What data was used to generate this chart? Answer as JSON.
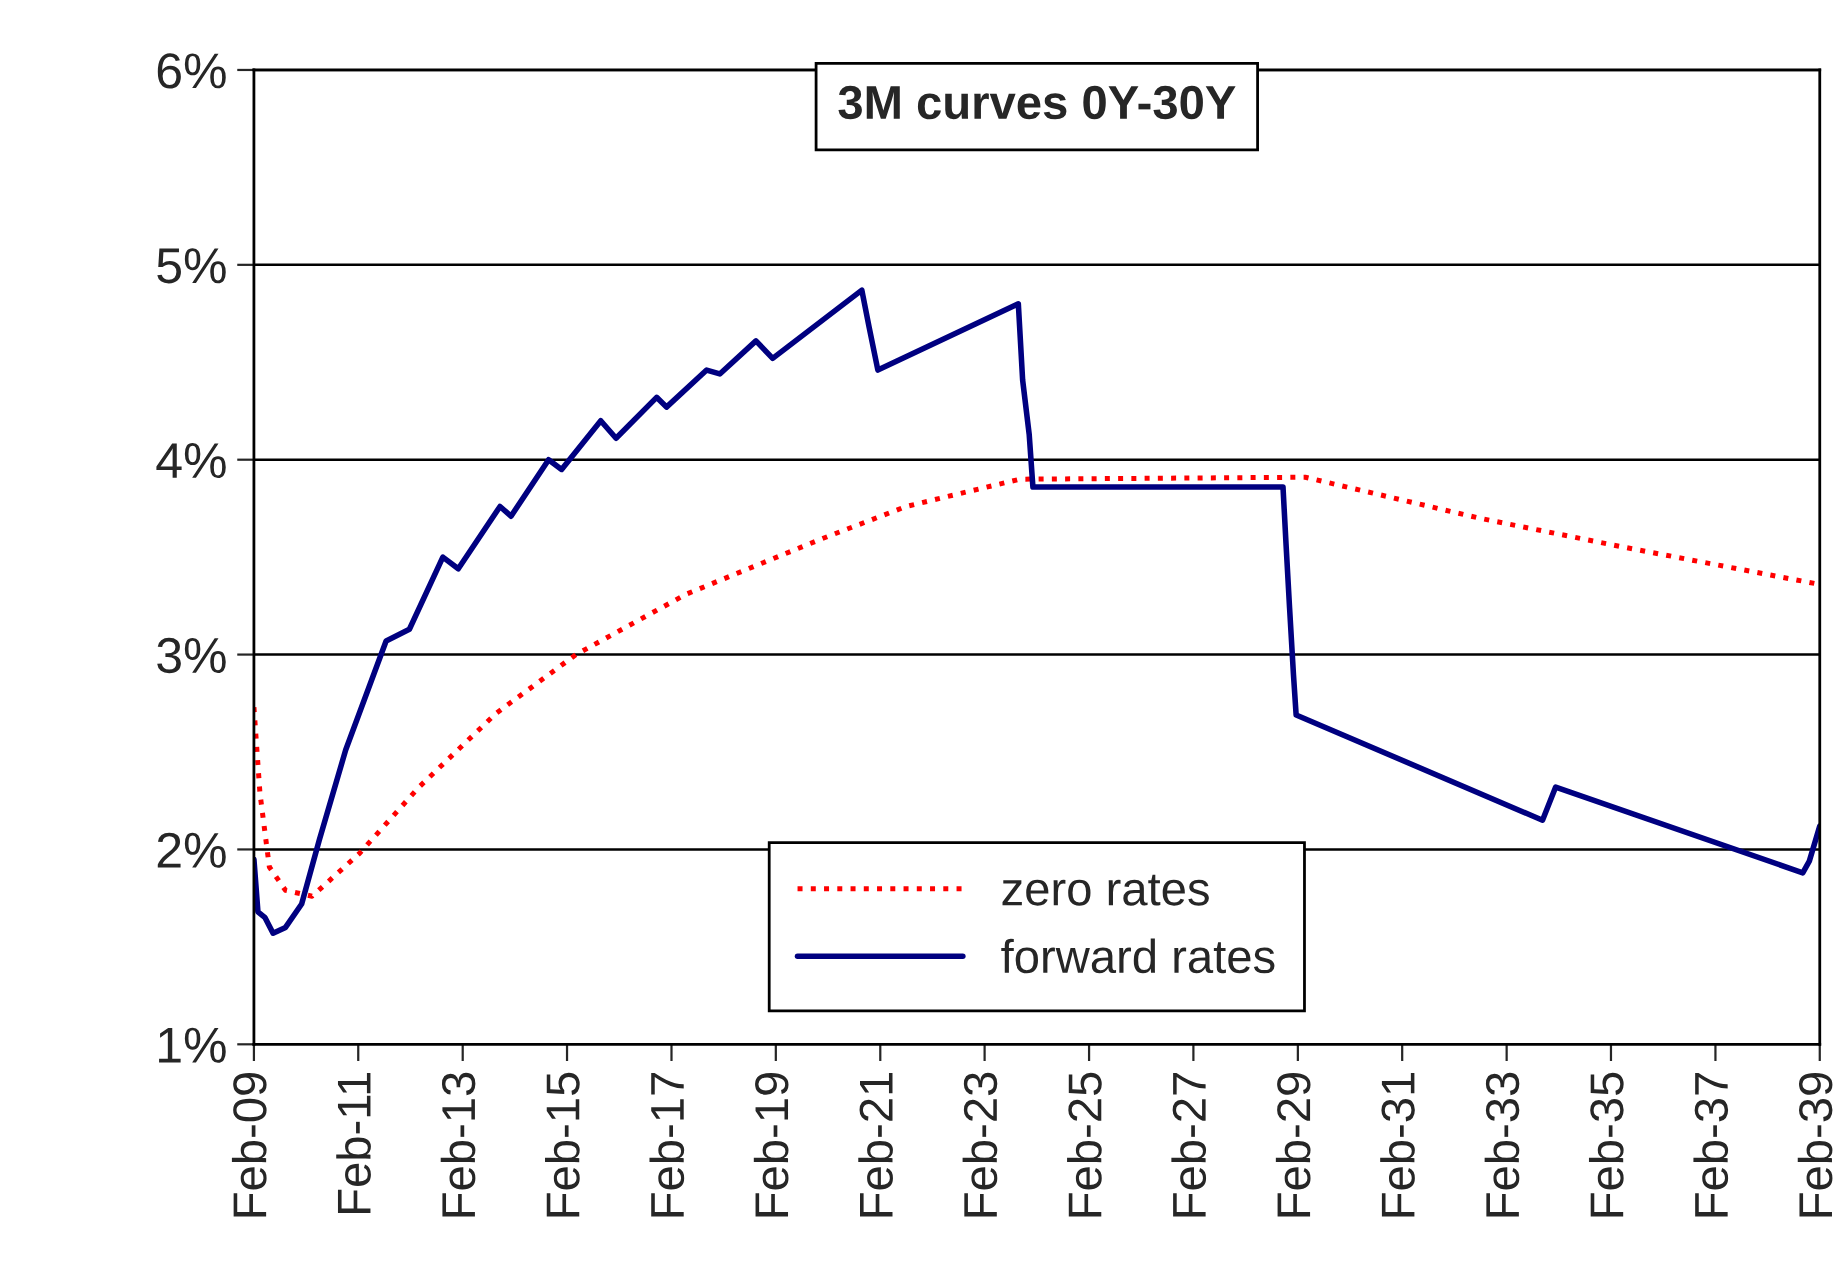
{
  "chart_data": {
    "type": "line",
    "title": "3M curves 0Y-30Y",
    "series": [
      {
        "name": "zero rates",
        "color": "#ff0000",
        "line_style": "dotted",
        "x": [
          "2009-02-01",
          "2009-03-15",
          "2009-05-20",
          "2009-09-10",
          "2010-03-15",
          "2011-02-10",
          "2012-04-01",
          "2013-09-25",
          "2015-04-05",
          "2017-05-15",
          "2019-12-05",
          "2021-08-01",
          "2023-10-05",
          "2029-03-25",
          "2032-07-25",
          "2035-05-10",
          "2039-02-01"
        ],
        "values": [
          2.73,
          2.29,
          1.91,
          1.79,
          1.76,
          1.98,
          2.32,
          2.7,
          3.0,
          3.31,
          3.59,
          3.76,
          3.9,
          3.91,
          3.7,
          3.55,
          3.36
        ]
      },
      {
        "name": "forward rates",
        "color": "#000080",
        "line_style": "solid",
        "x": [
          "2009-02-01",
          "2009-03-01",
          "2009-04-20",
          "2009-06-15",
          "2009-09-10",
          "2010-01-01",
          "2010-05-05",
          "2010-11-05",
          "2011-08-15",
          "2012-01-25",
          "2012-09-15",
          "2013-01-01",
          "2013-10-20",
          "2014-01-05",
          "2014-09-25",
          "2014-12-25",
          "2015-09-25",
          "2016-01-10",
          "2016-10-20",
          "2016-12-28",
          "2017-10-05",
          "2018-01-05",
          "2018-09-15",
          "2019-01-10",
          "2020-09-25",
          "2020-11-15",
          "2021-01-15",
          "2023-09-25",
          "2023-10-25",
          "2023-12-10",
          "2024-01-05",
          "2028-10-20",
          "2028-11-10",
          "2028-12-05",
          "2029-01-01",
          "2029-01-20",
          "2033-10-10",
          "2034-01-10",
          "2038-10-05",
          "2038-11-20",
          "2039-02-01"
        ],
        "values": [
          1.95,
          1.68,
          1.65,
          1.57,
          1.6,
          1.72,
          2.05,
          2.51,
          3.07,
          3.13,
          3.5,
          3.44,
          3.76,
          3.71,
          4.0,
          3.95,
          4.2,
          4.11,
          4.32,
          4.27,
          4.46,
          4.44,
          4.61,
          4.52,
          4.87,
          4.68,
          4.46,
          4.8,
          4.41,
          4.13,
          3.86,
          3.86,
          3.57,
          3.24,
          2.9,
          2.69,
          2.15,
          2.32,
          1.88,
          1.94,
          2.12
        ]
      }
    ],
    "xlim": [
      "2009-02-01",
      "2039-02-01"
    ],
    "xticks": [
      {
        "value": "2009-02-01",
        "label": "Feb-09"
      },
      {
        "value": "2011-02-01",
        "label": "Feb-11"
      },
      {
        "value": "2013-02-01",
        "label": "Feb-13"
      },
      {
        "value": "2015-02-01",
        "label": "Feb-15"
      },
      {
        "value": "2017-02-01",
        "label": "Feb-17"
      },
      {
        "value": "2019-02-01",
        "label": "Feb-19"
      },
      {
        "value": "2021-02-01",
        "label": "Feb-21"
      },
      {
        "value": "2023-02-01",
        "label": "Feb-23"
      },
      {
        "value": "2025-02-01",
        "label": "Feb-25"
      },
      {
        "value": "2027-02-01",
        "label": "Feb-27"
      },
      {
        "value": "2029-02-01",
        "label": "Feb-29"
      },
      {
        "value": "2031-02-01",
        "label": "Feb-31"
      },
      {
        "value": "2033-02-01",
        "label": "Feb-33"
      },
      {
        "value": "2035-02-01",
        "label": "Feb-35"
      },
      {
        "value": "2037-02-01",
        "label": "Feb-37"
      },
      {
        "value": "2039-02-01",
        "label": "Feb-39"
      }
    ],
    "ylim": [
      1,
      6
    ],
    "yticks": [
      {
        "value": 1,
        "label": "1%"
      },
      {
        "value": 2,
        "label": "2%"
      },
      {
        "value": 3,
        "label": "3%"
      },
      {
        "value": 4,
        "label": "4%"
      },
      {
        "value": 5,
        "label": "5%"
      },
      {
        "value": 6,
        "label": "6%"
      }
    ],
    "grid": "y",
    "legend": "bottom",
    "marker": "none"
  }
}
